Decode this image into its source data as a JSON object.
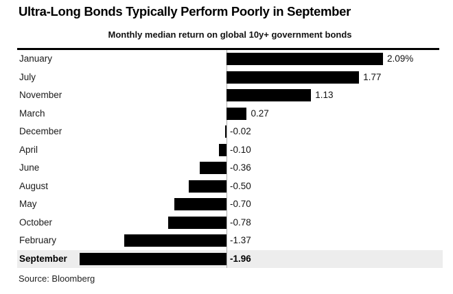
{
  "header": {
    "title": "Ultra-Long Bonds Typically Perform Poorly in September",
    "subtitle": "Monthly median return on global 10y+ government bonds"
  },
  "footer": {
    "source": "Source: Bloomberg"
  },
  "colors": {
    "bar": "#000000",
    "highlight_row_bg": "#ededed",
    "axis_line": "#ababab",
    "top_rule": "#000000",
    "background": "#ffffff",
    "text": "#111111"
  },
  "chart_data": {
    "type": "bar",
    "orientation": "horizontal",
    "title": "Ultra-Long Bonds Typically Perform Poorly in September",
    "subtitle": "Monthly median return on global 10y+ government bonds",
    "categories": [
      "January",
      "July",
      "November",
      "March",
      "December",
      "April",
      "June",
      "August",
      "May",
      "October",
      "February",
      "September"
    ],
    "values": [
      2.09,
      1.77,
      1.13,
      0.27,
      -0.02,
      -0.1,
      -0.36,
      -0.5,
      -0.7,
      -0.78,
      -1.37,
      -1.96
    ],
    "value_labels": [
      "2.09%",
      "1.77",
      "1.13",
      "0.27",
      "-0.02",
      "-0.10",
      "-0.36",
      "-0.50",
      "-0.70",
      "-0.78",
      "-1.37",
      "-1.96"
    ],
    "highlighted_category": "September",
    "unit": "%",
    "xlim": [
      -2.8,
      2.9
    ],
    "grid": false,
    "legend": false,
    "sort_order": "descending"
  }
}
